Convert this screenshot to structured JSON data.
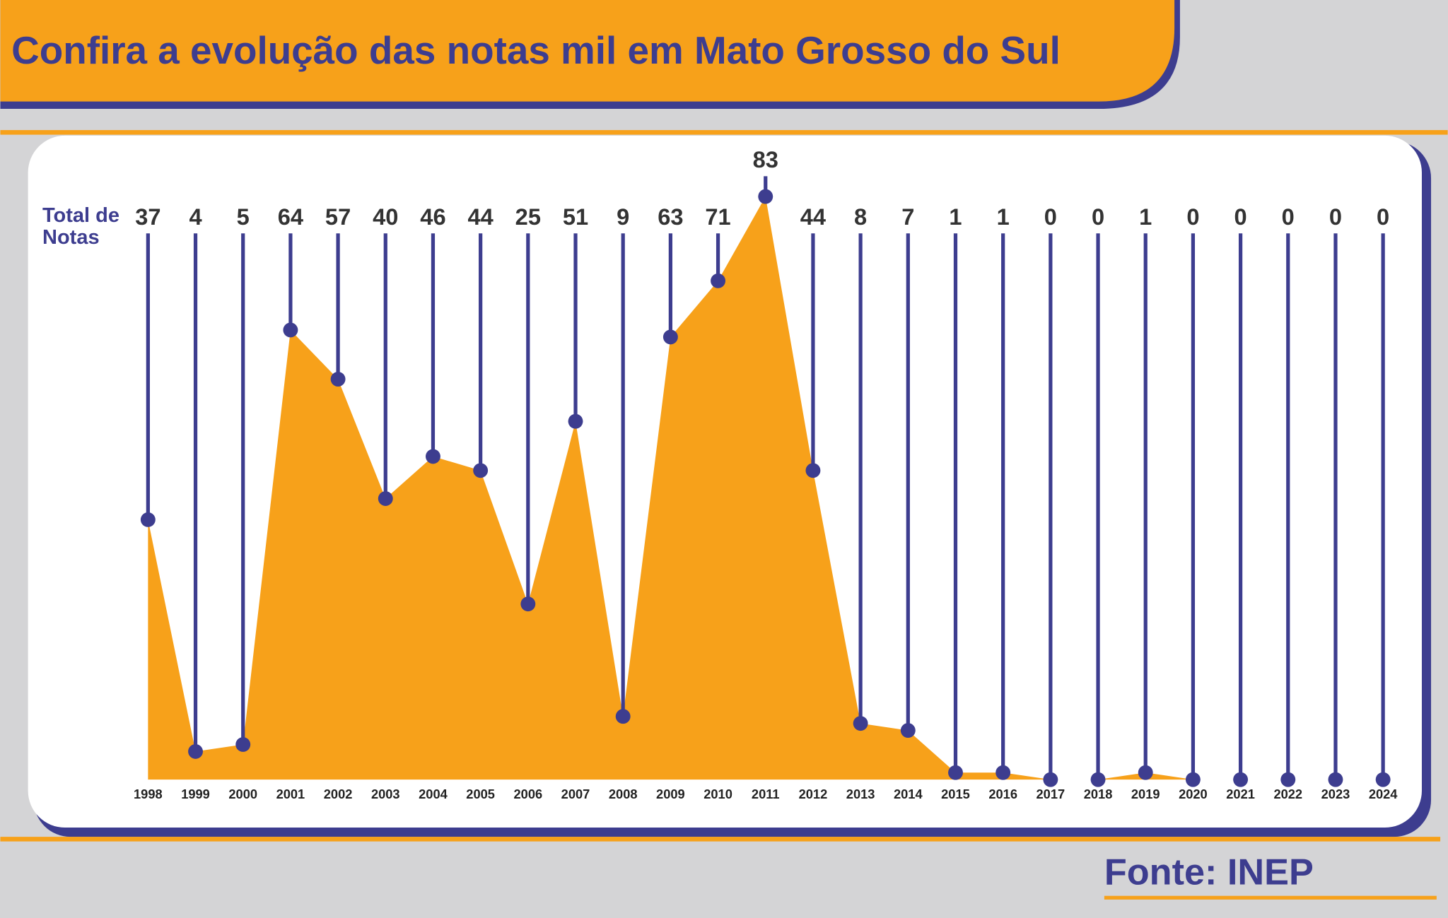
{
  "chart_data": {
    "type": "area",
    "title": "Confira a evolução das notas mil em Mato Grosso do Sul",
    "value_label_title": "Total de Notas",
    "source": "Fonte: INEP",
    "categories": [
      "1998",
      "1999",
      "2000",
      "2001",
      "2002",
      "2003",
      "2004",
      "2005",
      "2006",
      "2007",
      "2008",
      "2009",
      "2010",
      "2011",
      "2012",
      "2013",
      "2014",
      "2015",
      "2016",
      "2017",
      "2018",
      "2019",
      "2020",
      "2021",
      "2022",
      "2023",
      "2024"
    ],
    "values": [
      37,
      4,
      5,
      64,
      57,
      40,
      46,
      44,
      25,
      51,
      9,
      63,
      71,
      83,
      44,
      8,
      7,
      1,
      1,
      0,
      0,
      1,
      0,
      0,
      0,
      0,
      0
    ],
    "color": "#f7a11a",
    "marker_color": "#3d3d8f"
  }
}
